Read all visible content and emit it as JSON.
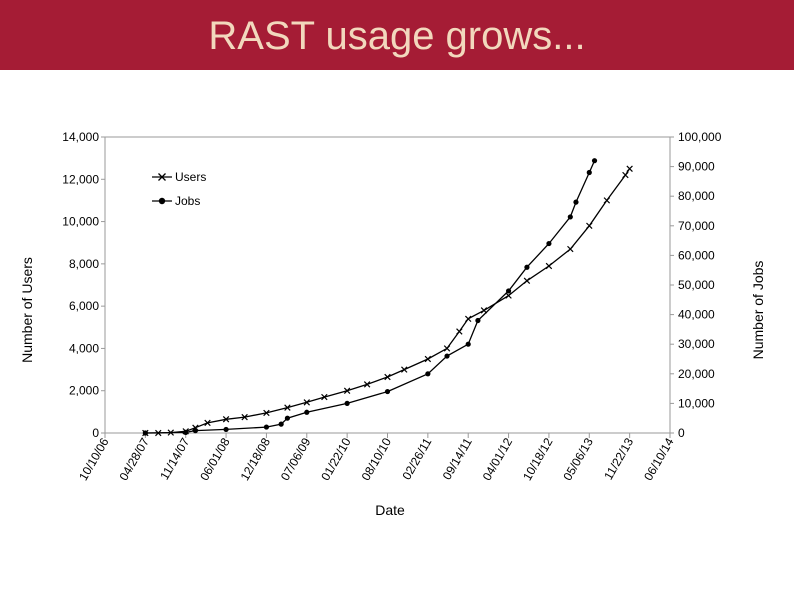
{
  "slide": {
    "title": "RAST usage grows..."
  },
  "colors": {
    "title_bar": "#a51c35",
    "title_text": "#f2d8bd"
  },
  "chart_data": {
    "type": "line",
    "xlabel": "Date",
    "ylabel_left": "Number of Users",
    "ylabel_right": "Number of Jobs",
    "x_ticks": [
      "10/10/06",
      "04/28/07",
      "11/14/07",
      "06/01/08",
      "12/18/08",
      "07/06/09",
      "01/22/10",
      "08/10/10",
      "02/26/11",
      "09/14/11",
      "04/01/12",
      "10/18/12",
      "05/06/13",
      "11/22/13",
      "06/10/14"
    ],
    "y_left_ticks": [
      "0",
      "2,000",
      "4,000",
      "6,000",
      "8,000",
      "10,000",
      "12,000",
      "14,000"
    ],
    "y_right_ticks": [
      "0",
      "10,000",
      "20,000",
      "30,000",
      "40,000",
      "50,000",
      "60,000",
      "70,000",
      "80,000",
      "90,000",
      "100,000"
    ],
    "ylim_left": [
      0,
      14000
    ],
    "ylim_right": [
      0,
      100000
    ],
    "legend_position": "top-left",
    "series": [
      {
        "name": "Users",
        "axis": "left",
        "marker": "x",
        "points": [
          [
            "04/28/07",
            0
          ],
          [
            "07/01/07",
            0
          ],
          [
            "09/01/07",
            20
          ],
          [
            "11/14/07",
            80
          ],
          [
            "01/01/08",
            250
          ],
          [
            "03/01/08",
            480
          ],
          [
            "06/01/08",
            650
          ],
          [
            "09/01/08",
            750
          ],
          [
            "12/18/08",
            950
          ],
          [
            "04/01/09",
            1200
          ],
          [
            "07/06/09",
            1450
          ],
          [
            "10/01/09",
            1700
          ],
          [
            "01/22/10",
            2000
          ],
          [
            "05/01/10",
            2300
          ],
          [
            "08/10/10",
            2650
          ],
          [
            "11/01/10",
            3000
          ],
          [
            "02/26/11",
            3500
          ],
          [
            "06/01/11",
            4000
          ],
          [
            "08/01/11",
            4800
          ],
          [
            "09/14/11",
            5400
          ],
          [
            "12/01/11",
            5800
          ],
          [
            "04/01/12",
            6500
          ],
          [
            "07/01/12",
            7200
          ],
          [
            "10/18/12",
            7900
          ],
          [
            "02/01/13",
            8700
          ],
          [
            "05/06/13",
            9800
          ],
          [
            "08/01/13",
            11000
          ],
          [
            "11/01/13",
            12200
          ],
          [
            "11/22/13",
            12500
          ]
        ]
      },
      {
        "name": "Jobs",
        "axis": "right",
        "marker": "circle",
        "points": [
          [
            "04/28/07",
            0
          ],
          [
            "11/14/07",
            200
          ],
          [
            "01/01/08",
            800
          ],
          [
            "06/01/08",
            1200
          ],
          [
            "12/18/08",
            2000
          ],
          [
            "03/01/09",
            3000
          ],
          [
            "04/01/09",
            5000
          ],
          [
            "07/06/09",
            7000
          ],
          [
            "01/22/10",
            10000
          ],
          [
            "08/10/10",
            14000
          ],
          [
            "02/26/11",
            20000
          ],
          [
            "06/01/11",
            26000
          ],
          [
            "09/14/11",
            30000
          ],
          [
            "11/01/11",
            38000
          ],
          [
            "04/01/12",
            48000
          ],
          [
            "07/01/12",
            56000
          ],
          [
            "10/18/12",
            64000
          ],
          [
            "02/01/13",
            73000
          ],
          [
            "03/01/13",
            78000
          ],
          [
            "05/06/13",
            88000
          ],
          [
            "06/01/13",
            92000
          ]
        ]
      }
    ]
  }
}
